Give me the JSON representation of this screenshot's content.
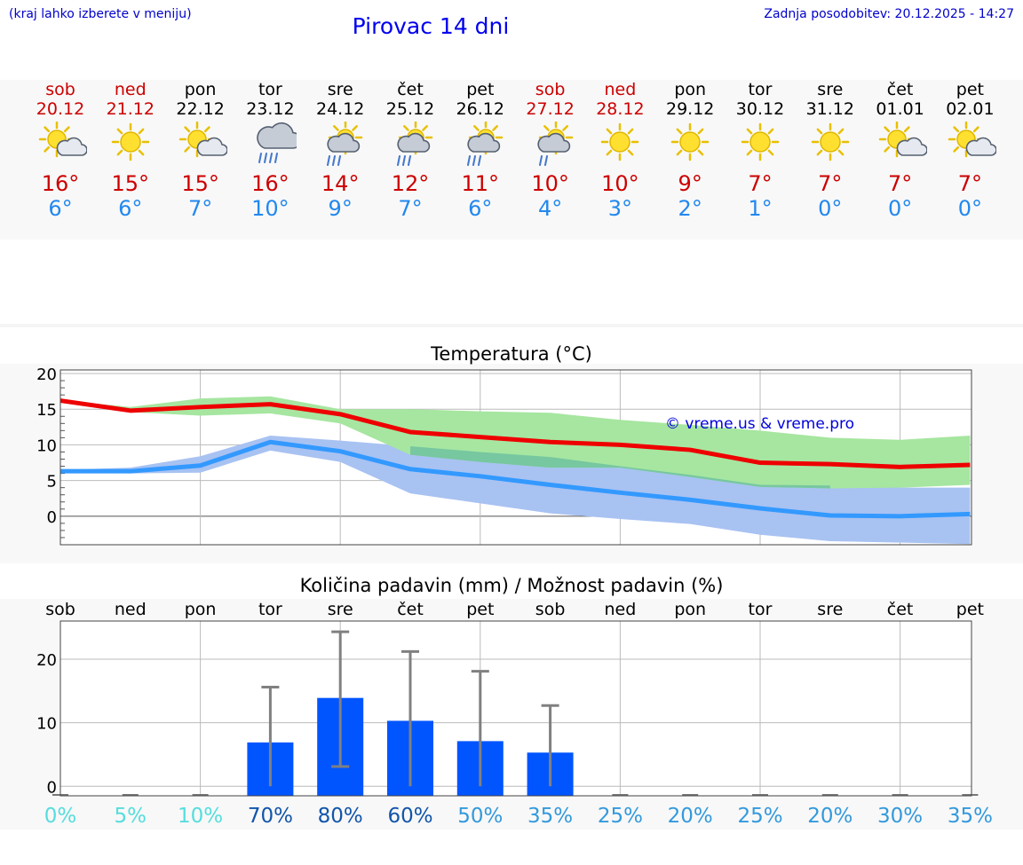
{
  "header": {
    "note": "(kraj lahko izberete v meniju)",
    "title": "Pirovac 14 dni",
    "update": "Zadnja posodobitev: 20.12.2025 - 14:27"
  },
  "days": [
    {
      "name": "sob",
      "date": "20.12",
      "weekend": true,
      "icon": "sun-cloud-icon",
      "max": "16°",
      "min": "6°"
    },
    {
      "name": "ned",
      "date": "21.12",
      "weekend": true,
      "icon": "sun-icon",
      "max": "15°",
      "min": "6°"
    },
    {
      "name": "pon",
      "date": "22.12",
      "weekend": false,
      "icon": "sun-cloud-icon",
      "max": "15°",
      "min": "7°"
    },
    {
      "name": "tor",
      "date": "23.12",
      "weekend": false,
      "icon": "cloud-rain-icon",
      "max": "16°",
      "min": "10°"
    },
    {
      "name": "sre",
      "date": "24.12",
      "weekend": false,
      "icon": "sun-rain-icon",
      "max": "14°",
      "min": "9°"
    },
    {
      "name": "čet",
      "date": "25.12",
      "weekend": false,
      "icon": "sun-rain-icon",
      "max": "12°",
      "min": "7°"
    },
    {
      "name": "pet",
      "date": "26.12",
      "weekend": false,
      "icon": "sun-rain-icon",
      "max": "11°",
      "min": "6°"
    },
    {
      "name": "sob",
      "date": "27.12",
      "weekend": true,
      "icon": "sun-light-rain-icon",
      "max": "10°",
      "min": "4°"
    },
    {
      "name": "ned",
      "date": "28.12",
      "weekend": true,
      "icon": "sun-icon",
      "max": "10°",
      "min": "3°"
    },
    {
      "name": "pon",
      "date": "29.12",
      "weekend": false,
      "icon": "sun-icon",
      "max": "9°",
      "min": "2°"
    },
    {
      "name": "tor",
      "date": "30.12",
      "weekend": false,
      "icon": "sun-icon",
      "max": "7°",
      "min": "1°"
    },
    {
      "name": "sre",
      "date": "31.12",
      "weekend": false,
      "icon": "sun-icon",
      "max": "7°",
      "min": "0°"
    },
    {
      "name": "čet",
      "date": "01.01",
      "weekend": false,
      "icon": "sun-cloud-icon",
      "max": "7°",
      "min": "0°"
    },
    {
      "name": "pet",
      "date": "02.01",
      "weekend": false,
      "icon": "sun-cloud-icon",
      "max": "7°",
      "min": "0°"
    }
  ],
  "colors": {
    "max_line": "#ee0000",
    "min_line": "#3399ff",
    "max_band": "#a6e6a0",
    "min_band": "#a8c2f2",
    "overlap_band": "#77c7a0",
    "weekend": "#cc0000",
    "bar": "#0055ff",
    "whisker": "#808080",
    "grid": "#bbbbbb"
  },
  "watermark": "© vreme.us & vreme.pro",
  "chart_data": [
    {
      "type": "line",
      "title": "Temperatura (°C)",
      "x": [
        "sob",
        "ned",
        "pon",
        "tor",
        "sre",
        "čet",
        "pet",
        "sob",
        "ned",
        "pon",
        "tor",
        "sre",
        "čet",
        "pet"
      ],
      "ylim": [
        -4,
        20.5
      ],
      "yticks": [
        "20",
        "15",
        "10",
        "5",
        "0"
      ],
      "series": [
        {
          "name": "max",
          "values": [
            16.2,
            14.8,
            15.3,
            15.7,
            14.3,
            11.8,
            11.1,
            10.4,
            10.0,
            9.3,
            7.5,
            7.3,
            6.9,
            7.2
          ]
        },
        {
          "name": "min",
          "values": [
            6.3,
            6.3,
            7.1,
            10.4,
            9.1,
            6.6,
            5.6,
            4.4,
            3.3,
            2.3,
            1.1,
            0.1,
            0.0,
            0.3
          ]
        }
      ],
      "bands": [
        {
          "name": "max_range_upper",
          "values": [
            16.3,
            15.3,
            16.5,
            16.8,
            15.0,
            15.0,
            14.7,
            14.5,
            13.5,
            12.8,
            12.0,
            11.0,
            10.7,
            11.3
          ]
        },
        {
          "name": "max_range_lower",
          "values": [
            16.1,
            14.6,
            14.1,
            14.4,
            13.0,
            8.6,
            7.6,
            6.8,
            6.8,
            5.5,
            4.1,
            3.9,
            4.0,
            4.4
          ]
        },
        {
          "name": "min_range_upper",
          "values": [
            6.5,
            6.8,
            8.4,
            11.3,
            10.6,
            9.8,
            9.0,
            8.3,
            7.0,
            5.8,
            4.4,
            4.3,
            4.0,
            4.0
          ]
        },
        {
          "name": "min_range_lower",
          "values": [
            6.2,
            6.0,
            6.1,
            9.2,
            7.6,
            3.2,
            1.8,
            0.4,
            -0.4,
            -1.1,
            -2.6,
            -3.5,
            -3.7,
            -3.9
          ]
        }
      ]
    },
    {
      "type": "bar",
      "title": "Količina padavin (mm) / Možnost padavin (%)",
      "categories": [
        "sob",
        "ned",
        "pon",
        "tor",
        "sre",
        "čet",
        "pet",
        "sob",
        "ned",
        "pon",
        "tor",
        "sre",
        "čet",
        "pet"
      ],
      "values": [
        0,
        0,
        0,
        6.9,
        13.9,
        10.3,
        7.1,
        5.3,
        0,
        0,
        0,
        0,
        0,
        0
      ],
      "err_low": [
        0,
        0,
        0,
        0,
        3.1,
        0,
        0,
        0,
        0,
        0,
        0,
        0,
        0,
        0
      ],
      "err_high": [
        0,
        0,
        0,
        15.6,
        24.3,
        21.2,
        18.1,
        12.7,
        0,
        0,
        0,
        0,
        0,
        0
      ],
      "ylim": [
        -1.5,
        26
      ],
      "yticks": [
        "20",
        "10",
        "0"
      ],
      "chance": [
        "0%",
        "5%",
        "10%",
        "70%",
        "80%",
        "60%",
        "50%",
        "35%",
        "25%",
        "20%",
        "25%",
        "20%",
        "30%",
        "35%"
      ],
      "chance_colors": [
        "#55dddd",
        "#55dddd",
        "#55dddd",
        "#1155aa",
        "#1155aa",
        "#1155aa",
        "#3399dd",
        "#3399dd",
        "#3399dd",
        "#3399dd",
        "#3399dd",
        "#3399dd",
        "#3399dd",
        "#3399dd"
      ]
    }
  ]
}
